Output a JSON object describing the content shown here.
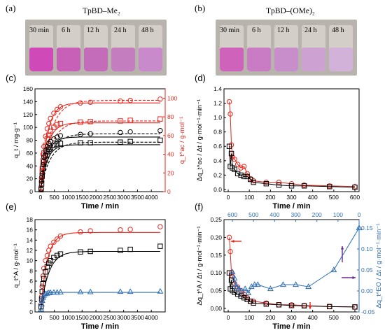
{
  "photos": [
    {
      "panel": "(a)",
      "title": "TpBD–Me₂",
      "times": [
        "30 min",
        "6 h",
        "12 h",
        "24 h",
        "48 h"
      ],
      "liquid_colors": [
        "#cf49b8",
        "#c860b8",
        "#c46cb9",
        "#c47ec0",
        "#c98acb"
      ]
    },
    {
      "panel": "(b)",
      "title": "TpBD–(OMe)₂",
      "times": [
        "30 min",
        "6 h",
        "12 h",
        "24 h",
        "48 h"
      ],
      "liquid_colors": [
        "#cf63bc",
        "#c97cc4",
        "#c88ecb",
        "#cda2d2",
        "#d2b2d8"
      ]
    }
  ],
  "colors": {
    "black": "#000000",
    "red": "#e8261c",
    "blue": "#2f6fb4",
    "purple": "#6a2b8f"
  },
  "chart_data": [
    {
      "id": "c",
      "panel": "(c)",
      "type": "scatter",
      "xlabel": "Time / min",
      "ylabel": "q_t / mg·g⁻¹",
      "ylabel_right": "q_t^ac / g·mol⁻¹",
      "xlim": [
        -200,
        4500
      ],
      "ylim": [
        0,
        160
      ],
      "ylim_right": [
        0,
        110
      ],
      "xticks": [
        0,
        500,
        1000,
        1500,
        2000,
        2500,
        3000,
        3500,
        4000
      ],
      "yticks": [
        0,
        20,
        40,
        60,
        80,
        100,
        120,
        140,
        160
      ],
      "yticks_right": [
        0,
        20,
        40,
        60,
        80,
        100
      ],
      "series": [
        {
          "marker": "circle",
          "color": "red",
          "axis": "left",
          "x": [
            20,
            40,
            60,
            90,
            120,
            180,
            240,
            300,
            360,
            480,
            600,
            720,
            1440,
            1800,
            2880,
            3240,
            4320
          ],
          "y": [
            6,
            22,
            38,
            58,
            70,
            86,
            98,
            106,
            114,
            122,
            128,
            132,
            138,
            139,
            141,
            142,
            144
          ]
        },
        {
          "marker": "square",
          "color": "red",
          "axis": "left",
          "x": [
            20,
            40,
            60,
            90,
            120,
            180,
            240,
            300,
            360,
            480,
            600,
            720,
            1440,
            1800,
            2880,
            3240,
            4320
          ],
          "y": [
            5,
            18,
            32,
            48,
            60,
            72,
            82,
            88,
            94,
            100,
            104,
            106,
            108,
            109,
            110,
            111,
            113
          ]
        },
        {
          "marker": "circle",
          "color": "black",
          "axis": "left",
          "x": [
            20,
            40,
            60,
            90,
            120,
            180,
            240,
            300,
            360,
            480,
            600,
            720,
            1440,
            1800,
            2880,
            3240,
            4320
          ],
          "y": [
            4,
            16,
            28,
            42,
            54,
            64,
            70,
            75,
            78,
            82,
            85,
            87,
            89,
            90,
            92,
            93,
            95
          ]
        },
        {
          "marker": "square",
          "color": "black",
          "axis": "left",
          "x": [
            20,
            40,
            60,
            90,
            120,
            180,
            240,
            300,
            360,
            480,
            600,
            720,
            1440,
            1800,
            2880,
            3240,
            4320
          ],
          "y": [
            3,
            12,
            24,
            36,
            46,
            56,
            62,
            66,
            69,
            72,
            74,
            75,
            76,
            76,
            77,
            78,
            80
          ]
        }
      ],
      "fits": [
        {
          "color": "red",
          "style": "solid",
          "qe": 138,
          "k": 0.0042
        },
        {
          "color": "red",
          "style": "dashed",
          "qe": 142,
          "k": 0.0028
        },
        {
          "color": "red",
          "style": "solid",
          "qe": 107,
          "k": 0.0042
        },
        {
          "color": "red",
          "style": "dashed",
          "qe": 110,
          "k": 0.0028
        },
        {
          "color": "black",
          "style": "solid",
          "qe": 85,
          "k": 0.0045
        },
        {
          "color": "black",
          "style": "dashed",
          "qe": 90,
          "k": 0.003
        },
        {
          "color": "black",
          "style": "solid",
          "qe": 73,
          "k": 0.0045
        },
        {
          "color": "black",
          "style": "dashed",
          "qe": 77,
          "k": 0.003
        }
      ]
    },
    {
      "id": "d",
      "panel": "(d)",
      "type": "line",
      "xlabel": "Time / min",
      "ylabel": "Δq_t^ac / Δt / g·mol⁻¹·min⁻¹",
      "xlim": [
        -20,
        620
      ],
      "ylim": [
        -0.03,
        1.4
      ],
      "xticks": [
        0,
        100,
        200,
        300,
        400,
        500,
        600
      ],
      "yticks": [
        0.0,
        0.2,
        0.4,
        0.6,
        0.8,
        1.0,
        1.2,
        1.4
      ],
      "series": [
        {
          "marker": "circle",
          "color": "red",
          "x": [
            5,
            10,
            15,
            20,
            30,
            45,
            60,
            75,
            90,
            105,
            120,
            180,
            240,
            300,
            360,
            480,
            600
          ],
          "y": [
            1.22,
            1.05,
            0.62,
            0.45,
            0.42,
            0.35,
            0.3,
            0.32,
            0.22,
            0.15,
            0.12,
            0.1,
            0.1,
            0.08,
            0.06,
            0.05,
            0.04
          ]
        },
        {
          "marker": "square",
          "color": "black",
          "x": [
            5,
            10,
            15,
            20,
            30,
            45,
            60,
            75,
            90,
            105,
            120,
            180,
            240,
            300,
            360,
            480,
            600
          ],
          "y": [
            0.6,
            0.32,
            0.5,
            0.3,
            0.28,
            0.22,
            0.2,
            0.18,
            0.18,
            0.14,
            0.1,
            0.08,
            0.06,
            0.05,
            0.05,
            0.04,
            0.03
          ]
        }
      ]
    },
    {
      "id": "e",
      "panel": "(e)",
      "type": "scatter",
      "xlabel": "Time / min",
      "ylabel": "q_t^A / g·mol⁻¹",
      "xlim": [
        -200,
        4500
      ],
      "ylim": [
        0,
        18
      ],
      "xticks": [
        0,
        500,
        1000,
        1500,
        2000,
        2500,
        3000,
        3500,
        4000
      ],
      "yticks": [
        0,
        2,
        4,
        6,
        8,
        10,
        12,
        14,
        16,
        18
      ],
      "series": [
        {
          "marker": "circle",
          "color": "red",
          "x": [
            20,
            40,
            60,
            90,
            120,
            180,
            240,
            300,
            360,
            480,
            600,
            720,
            1440,
            1800,
            2880,
            3240,
            4320
          ],
          "y": [
            1.5,
            3,
            5,
            7,
            8.5,
            10,
            11,
            12,
            12.8,
            13.6,
            14.2,
            14.8,
            15.6,
            15.8,
            16,
            16.1,
            16.6
          ]
        },
        {
          "marker": "square",
          "color": "black",
          "x": [
            20,
            40,
            60,
            90,
            120,
            180,
            240,
            300,
            360,
            480,
            600,
            720,
            1440,
            1800,
            2880,
            3240,
            4320
          ],
          "y": [
            1,
            2.5,
            4,
            5.5,
            6.5,
            7.8,
            8.8,
            9.5,
            10,
            10.6,
            11,
            11.3,
            11.7,
            11.8,
            12,
            12.2,
            12.8
          ]
        },
        {
          "marker": "triangle",
          "color": "blue",
          "x": [
            20,
            40,
            60,
            90,
            120,
            180,
            240,
            300,
            360,
            480,
            600,
            720,
            1440,
            1800,
            2880,
            3240,
            4320
          ],
          "y": [
            0.5,
            1.5,
            2.2,
            2.8,
            3.2,
            3.5,
            3.6,
            3.7,
            3.75,
            3.8,
            3.8,
            3.85,
            3.9,
            3.9,
            3.95,
            3.95,
            4
          ]
        }
      ],
      "fits": [
        {
          "color": "red",
          "style": "solid",
          "qe": 15.5,
          "k": 0.0042
        },
        {
          "color": "black",
          "style": "solid",
          "qe": 11.8,
          "k": 0.0035
        },
        {
          "color": "blue",
          "style": "solid",
          "qe": 3.8,
          "k": 0.012
        }
      ]
    },
    {
      "id": "f",
      "panel": "(f)",
      "type": "line",
      "xlabel": "Time / min",
      "ylabel": "Δq_t^A / Δt / g·mol⁻¹·min⁻¹",
      "ylabel_right": "Δq_t^EO / Δt / g·mol⁻¹·min⁻¹",
      "xlim": [
        -20,
        620
      ],
      "ylim": [
        -0.01,
        0.25
      ],
      "ylim_right": [
        -0.05,
        0.17
      ],
      "xticks": [
        0,
        100,
        200,
        300,
        400,
        500,
        600
      ],
      "xticks_top": [
        600,
        500,
        400,
        300,
        200,
        100,
        0
      ],
      "yticks": [
        0.0,
        0.05,
        0.1,
        0.15,
        0.2,
        0.25
      ],
      "yticks_right": [
        -0.05,
        0.0,
        0.05,
        0.1,
        0.15
      ],
      "series": [
        {
          "marker": "circle",
          "color": "red",
          "axis": "left",
          "x": [
            5,
            10,
            15,
            20,
            30,
            45,
            60,
            75,
            90,
            105,
            120,
            180,
            240,
            300,
            360,
            480,
            600
          ],
          "y": [
            0.2,
            0.16,
            0.1,
            0.09,
            0.07,
            0.06,
            0.05,
            0.04,
            0.03,
            0.02,
            0.02,
            0.015,
            0.01,
            0.01,
            0.008,
            0.005,
            0.004
          ]
        },
        {
          "marker": "square",
          "color": "black",
          "axis": "left",
          "x": [
            5,
            10,
            15,
            20,
            30,
            45,
            60,
            75,
            90,
            105,
            120,
            180,
            240,
            300,
            360,
            480,
            600
          ],
          "y": [
            0.1,
            0.055,
            0.08,
            0.05,
            0.045,
            0.04,
            0.035,
            0.03,
            0.025,
            0.02,
            0.015,
            0.012,
            0.01,
            0.008,
            0.007,
            0.005,
            0.004
          ]
        },
        {
          "marker": "triangle",
          "color": "blue",
          "axis": "right",
          "top_axis": true,
          "x": [
            600,
            590,
            585,
            580,
            570,
            555,
            540,
            525,
            510,
            495,
            480,
            420,
            360,
            300,
            240,
            120,
            0
          ],
          "y": [
            0.045,
            0.03,
            0.015,
            0.01,
            0.005,
            0.0,
            0.005,
            -0.005,
            0.01,
            0.015,
            0.015,
            0.005,
            0.015,
            0.015,
            0.01,
            0.05,
            0.15
          ]
        }
      ]
    }
  ]
}
